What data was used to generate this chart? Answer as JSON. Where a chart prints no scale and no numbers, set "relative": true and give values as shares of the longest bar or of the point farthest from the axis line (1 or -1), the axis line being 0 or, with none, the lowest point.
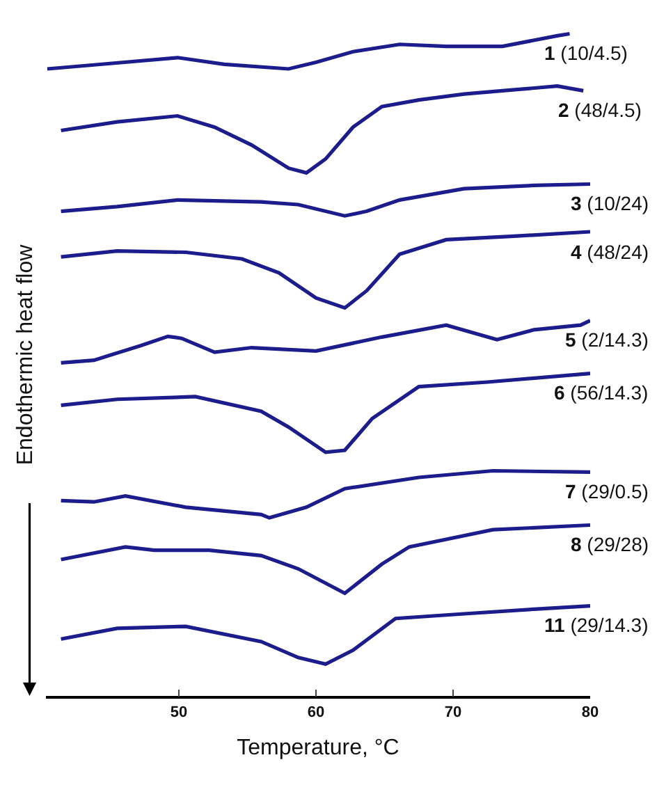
{
  "chart_data": {
    "type": "line",
    "relative": true,
    "xlabel": "Temperature, °C",
    "ylabel": "Endothermic heat flow",
    "xlim": [
      40.3,
      80
    ],
    "xticks": [
      50,
      60,
      70,
      80
    ],
    "legend": false,
    "marker": "none",
    "line_style": "solid",
    "series": [
      {
        "name": "1 (10/4.5)",
        "color": "#1c1c8c",
        "x": [
          40.4,
          43.8,
          49.9,
          53.3,
          58.0,
          60.0,
          62.7,
          66.1,
          69.5,
          73.6,
          77.6,
          78.5
        ],
        "values": [
          0.947,
          0.953,
          0.964,
          0.954,
          0.947,
          0.957,
          0.973,
          0.984,
          0.981,
          0.981,
          0.997,
          1
        ]
      },
      {
        "name": "2 (48/4.5)",
        "color": "#1c1c8c",
        "x": [
          41.4,
          45.5,
          49.9,
          52.6,
          55.3,
          58.0,
          59.3,
          60.7,
          62.7,
          64.8,
          67.5,
          70.8,
          74.2,
          77.6,
          79.5
        ],
        "values": [
          0.854,
          0.867,
          0.876,
          0.859,
          0.832,
          0.797,
          0.79,
          0.811,
          0.859,
          0.89,
          0.9,
          0.909,
          0.915,
          0.921,
          0.914
        ]
      },
      {
        "name": "3 (10/24)",
        "color": "#1c1c8c",
        "x": [
          41.4,
          45.5,
          49.9,
          56.0,
          58.7,
          62.1,
          63.7,
          66.1,
          70.8,
          75.9,
          80.0
        ],
        "values": [
          0.732,
          0.739,
          0.749,
          0.746,
          0.742,
          0.725,
          0.732,
          0.749,
          0.766,
          0.771,
          0.773
        ]
      },
      {
        "name": "4 (48/24)",
        "color": "#1c1c8c",
        "x": [
          41.4,
          45.5,
          50.5,
          54.6,
          57.3,
          60.0,
          62.1,
          63.7,
          66.1,
          69.5,
          74.2,
          80.0
        ],
        "values": [
          0.663,
          0.672,
          0.67,
          0.66,
          0.639,
          0.601,
          0.586,
          0.612,
          0.667,
          0.689,
          0.694,
          0.701
        ]
      },
      {
        "name": "5 (2/14.3)",
        "color": "#1c1c8c",
        "x": [
          41.4,
          43.8,
          47.2,
          49.2,
          50.2,
          52.6,
          55.3,
          60.0,
          64.8,
          69.5,
          73.2,
          75.9,
          79.3,
          80.0
        ],
        "values": [
          0.503,
          0.507,
          0.529,
          0.543,
          0.54,
          0.519,
          0.526,
          0.521,
          0.542,
          0.56,
          0.538,
          0.553,
          0.56,
          0.567
        ]
      },
      {
        "name": "6 (56/14.3)",
        "color": "#1c1c8c",
        "x": [
          41.4,
          45.5,
          51.2,
          56.0,
          58.0,
          60.7,
          62.1,
          64.1,
          67.5,
          72.5,
          80.0
        ],
        "values": [
          0.439,
          0.448,
          0.452,
          0.43,
          0.406,
          0.368,
          0.371,
          0.419,
          0.467,
          0.474,
          0.487
        ]
      },
      {
        "name": "7 (29/0.5)",
        "color": "#1c1c8c",
        "x": [
          41.4,
          43.8,
          46.1,
          50.5,
          56.0,
          56.6,
          59.3,
          62.1,
          67.5,
          72.9,
          80.0
        ],
        "values": [
          0.295,
          0.293,
          0.302,
          0.285,
          0.274,
          0.269,
          0.285,
          0.313,
          0.33,
          0.34,
          0.338
        ]
      },
      {
        "name": "8 (29/28)",
        "color": "#1c1c8c",
        "x": [
          41.4,
          46.1,
          48.2,
          52.2,
          56.0,
          58.7,
          62.1,
          64.8,
          66.8,
          72.9,
          80.0
        ],
        "values": [
          0.206,
          0.225,
          0.22,
          0.22,
          0.212,
          0.192,
          0.155,
          0.199,
          0.225,
          0.251,
          0.258
        ]
      },
      {
        "name": "11 (29/14.3)",
        "color": "#1c1c8c",
        "x": [
          41.4,
          45.5,
          50.5,
          56.0,
          58.7,
          60.7,
          62.7,
          65.8,
          70.8,
          75.9,
          80.0
        ],
        "values": [
          0.086,
          0.102,
          0.105,
          0.082,
          0.058,
          0.048,
          0.069,
          0.117,
          0.124,
          0.131,
          0.136
        ]
      }
    ]
  }
}
